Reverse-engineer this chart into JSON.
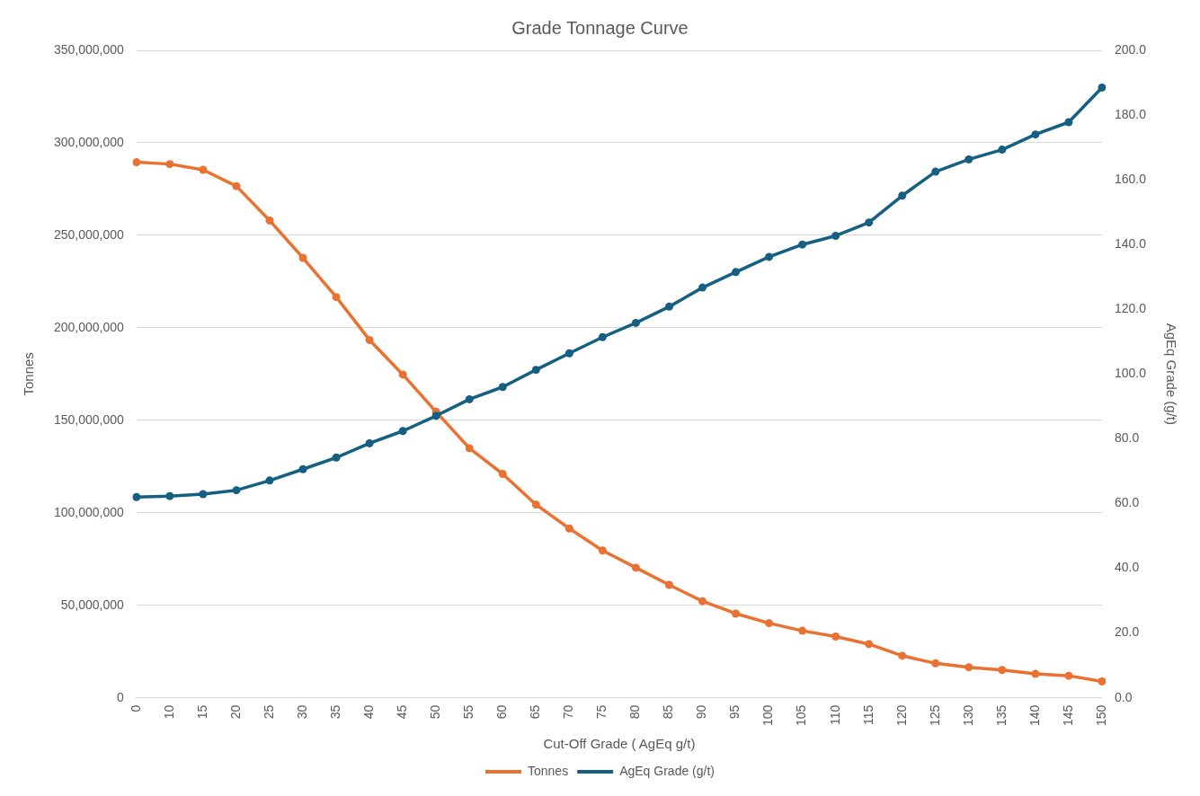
{
  "chart_data": {
    "type": "line",
    "title": "Grade Tonnage Curve",
    "xlabel": "Cut-Off Grade ( AgEq g/t)",
    "ylabel": "Tonnes",
    "y2label": "AgEq Grade (g/t)",
    "categories": [
      "0",
      "10",
      "15",
      "20",
      "25",
      "30",
      "35",
      "40",
      "45",
      "50",
      "55",
      "60",
      "65",
      "70",
      "75",
      "80",
      "85",
      "90",
      "95",
      "100",
      "105",
      "110",
      "115",
      "120",
      "125",
      "130",
      "135",
      "140",
      "145",
      "150"
    ],
    "series": [
      {
        "name": "Tonnes",
        "color": "#e97132",
        "values": [
          289500000,
          288500000,
          285400000,
          276600000,
          258000000,
          237800000,
          216600000,
          193400000,
          174700000,
          154600000,
          134900000,
          121000000,
          104400000,
          91500000,
          79600000,
          70300000,
          61000000,
          52200000,
          45500000,
          40300000,
          36200000,
          33100000,
          29000000,
          22700000,
          18600000,
          16500000,
          15000000,
          12900000,
          11900000,
          8800000
        ]
      },
      {
        "name": "AgEq Grade (g/t)",
        "color": "#156082",
        "axis": "y2",
        "values": [
          62.0,
          62.3,
          62.9,
          64.1,
          67.1,
          70.6,
          74.2,
          78.6,
          82.4,
          87.1,
          92.2,
          96.0,
          101.3,
          106.4,
          111.4,
          115.8,
          120.8,
          126.7,
          131.5,
          136.2,
          140.0,
          142.7,
          146.8,
          155.1,
          162.5,
          166.3,
          169.3,
          174.0,
          177.8,
          188.5
        ]
      }
    ],
    "ylim": [
      0,
      350000000
    ],
    "yticks": [
      0,
      {
        "value": 50000000,
        "label": "50,000,000"
      },
      {
        "value": 100000000,
        "label": "100,000,000"
      },
      {
        "value": 150000000,
        "label": "150,000,000"
      },
      {
        "value": 200000000,
        "label": "200,000,000"
      },
      {
        "value": 250000000,
        "label": "250,000,000"
      },
      {
        "value": 300000000,
        "label": "300,000,000"
      },
      {
        "value": 350000000,
        "label": "350,000,000"
      }
    ],
    "y2lim": [
      0,
      200
    ],
    "y2ticks": [
      {
        "value": 0,
        "label": "0.0"
      },
      {
        "value": 20,
        "label": "20.0"
      },
      {
        "value": 40,
        "label": "40.0"
      },
      {
        "value": 60,
        "label": "60.0"
      },
      {
        "value": 80,
        "label": "80.0"
      },
      {
        "value": 100,
        "label": "100.0"
      },
      {
        "value": 120,
        "label": "120.0"
      },
      {
        "value": 140,
        "label": "140.0"
      },
      {
        "value": 160,
        "label": "160.0"
      },
      {
        "value": 180,
        "label": "180.0"
      },
      {
        "value": 200,
        "label": "200.0"
      }
    ],
    "grid": "y",
    "legend": "bottom",
    "marker": "circle",
    "line_style": "solid"
  }
}
